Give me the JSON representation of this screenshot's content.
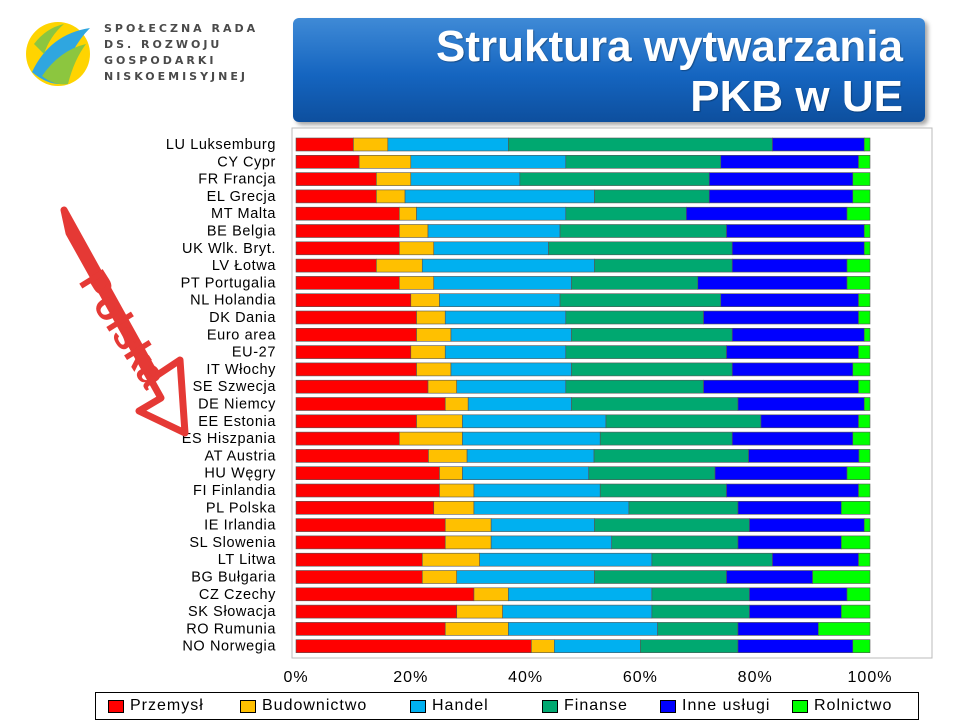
{
  "logo": {
    "lines": [
      "SPOŁECZNA RADA",
      "DS. ROZWOJU",
      "GOSPODARKI",
      "NISKOEMISYJNEJ"
    ]
  },
  "title": {
    "line1": "Struktura wytwarzania",
    "line2": "PKB w UE"
  },
  "annotation": {
    "text": "Polska"
  },
  "chart_data": {
    "type": "bar",
    "orientation": "horizontal",
    "stacked": "percent",
    "categories": [
      "LU Luksemburg",
      "CY Cypr",
      "FR Francja",
      "EL Grecja",
      "MT Malta",
      "BE Belgia",
      "UK Wlk. Bryt.",
      "LV Łotwa",
      "PT Portugalia",
      "NL Holandia",
      "DK Dania",
      "Euro area",
      "EU-27",
      "IT Włochy",
      "SE Szwecja",
      "DE Niemcy",
      "EE Estonia",
      "ES Hiszpania",
      "AT Austria",
      "HU Węgry",
      "FI Finlandia",
      "PL Polska",
      "IE Irlandia",
      "SL Slowenia",
      "LT Litwa",
      "BG Bułgaria",
      "CZ Czechy",
      "SK Słowacja",
      "RO Rumunia",
      "NO Norwegia"
    ],
    "series": [
      {
        "name": "Przemysł",
        "color": "#ff0000",
        "values": [
          10,
          11,
          14,
          14,
          18,
          18,
          18,
          14,
          18,
          20,
          21,
          21,
          20,
          21,
          23,
          26,
          21,
          18,
          24,
          25,
          25,
          24,
          26,
          26,
          22,
          22,
          31,
          28,
          26,
          41
        ]
      },
      {
        "name": "Budownictwo",
        "color": "#ffc000",
        "values": [
          6,
          9,
          6,
          5,
          3,
          5,
          6,
          8,
          6,
          5,
          5,
          6,
          6,
          6,
          5,
          4,
          8,
          11,
          7,
          4,
          6,
          7,
          8,
          8,
          10,
          6,
          6,
          8,
          11,
          4
        ]
      },
      {
        "name": "Handel",
        "color": "#00b0f0",
        "values": [
          21,
          27,
          19,
          33,
          26,
          23,
          20,
          30,
          24,
          21,
          21,
          21,
          21,
          21,
          19,
          18,
          25,
          24,
          23,
          22,
          22,
          27,
          18,
          21,
          30,
          24,
          25,
          26,
          26,
          15
        ]
      },
      {
        "name": "Finanse",
        "color": "#00a870",
        "values": [
          46,
          27,
          33,
          20,
          21,
          29,
          32,
          24,
          22,
          28,
          24,
          28,
          28,
          28,
          24,
          29,
          27,
          23,
          28,
          22,
          22,
          19,
          27,
          22,
          21,
          23,
          17,
          17,
          14,
          17
        ]
      },
      {
        "name": "Inne usługi",
        "color": "#0000ff",
        "values": [
          16,
          24,
          25,
          25,
          28,
          24,
          23,
          20,
          26,
          24,
          27,
          23,
          23,
          21,
          27,
          22,
          17,
          21,
          20,
          23,
          23,
          18,
          20,
          18,
          15,
          15,
          17,
          16,
          14,
          20
        ]
      },
      {
        "name": "Rolnictwo",
        "color": "#00ff00",
        "values": [
          1,
          2,
          3,
          3,
          4,
          1,
          1,
          4,
          4,
          2,
          2,
          1,
          2,
          3,
          2,
          1,
          2,
          3,
          2,
          4,
          2,
          5,
          1,
          5,
          2,
          10,
          4,
          5,
          9,
          3
        ]
      }
    ],
    "xlim": [
      0,
      100
    ],
    "xticks": [
      "0%",
      "20%",
      "40%",
      "60%",
      "80%",
      "100%"
    ],
    "grid": false,
    "legend_position": "bottom"
  }
}
